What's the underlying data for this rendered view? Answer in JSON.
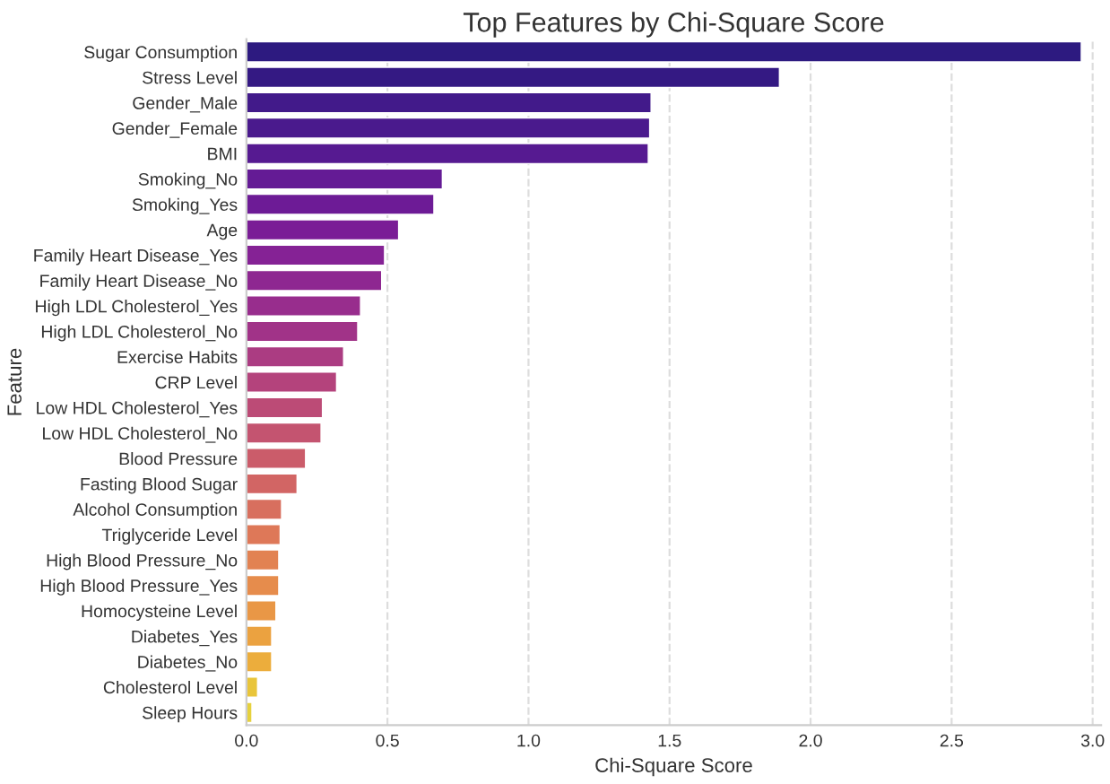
{
  "chart_data": {
    "type": "bar",
    "orientation": "horizontal",
    "title": "Top Features by Chi-Square Score",
    "xlabel": "Chi-Square Score",
    "ylabel": "Feature",
    "categories": [
      "Sugar Consumption",
      "Stress Level",
      "Gender_Male",
      "Gender_Female",
      "BMI",
      "Smoking_No",
      "Smoking_Yes",
      "Age",
      "Family Heart Disease_Yes",
      "Family Heart Disease_No",
      "High LDL Cholesterol_Yes",
      "High LDL Cholesterol_No",
      "Exercise Habits",
      "CRP Level",
      "Low HDL Cholesterol_Yes",
      "Low HDL Cholesterol_No",
      "Blood Pressure",
      "Fasting Blood Sugar",
      "Alcohol Consumption",
      "Triglyceride Level",
      "High Blood Pressure_No",
      "High Blood Pressure_Yes",
      "Homocysteine Level",
      "Diabetes_Yes",
      "Diabetes_No",
      "Cholesterol Level",
      "Sleep Hours"
    ],
    "values": [
      2.96,
      1.89,
      1.435,
      1.43,
      1.425,
      0.695,
      0.665,
      0.54,
      0.49,
      0.48,
      0.405,
      0.395,
      0.345,
      0.32,
      0.27,
      0.265,
      0.21,
      0.18,
      0.125,
      0.12,
      0.115,
      0.115,
      0.105,
      0.09,
      0.09,
      0.04,
      0.02
    ],
    "colors": [
      "#2d1a80",
      "#341983",
      "#421a8a",
      "#4a1a8d",
      "#561a91",
      "#641b95",
      "#6d1b96",
      "#7a1d96",
      "#852295",
      "#8e2791",
      "#982d8d",
      "#a13388",
      "#ab3c82",
      "#b4437c",
      "#bc4b76",
      "#c45470",
      "#cb5c6a",
      "#d26564",
      "#d86f5e",
      "#de7858",
      "#e28252",
      "#e68c4c",
      "#e99746",
      "#eba240",
      "#ecad3c",
      "#e9c53a",
      "#e6d13d"
    ],
    "xlim": [
      0,
      3.03
    ],
    "xticks": [
      {
        "value": 0,
        "label": "0.0"
      },
      {
        "value": 0.5,
        "label": "0.5"
      },
      {
        "value": 1,
        "label": "1.0"
      },
      {
        "value": 1.5,
        "label": "1.5"
      },
      {
        "value": 2,
        "label": "2.0"
      },
      {
        "value": 2.5,
        "label": "2.5"
      },
      {
        "value": 3,
        "label": "3.0"
      }
    ],
    "grid": "x"
  }
}
